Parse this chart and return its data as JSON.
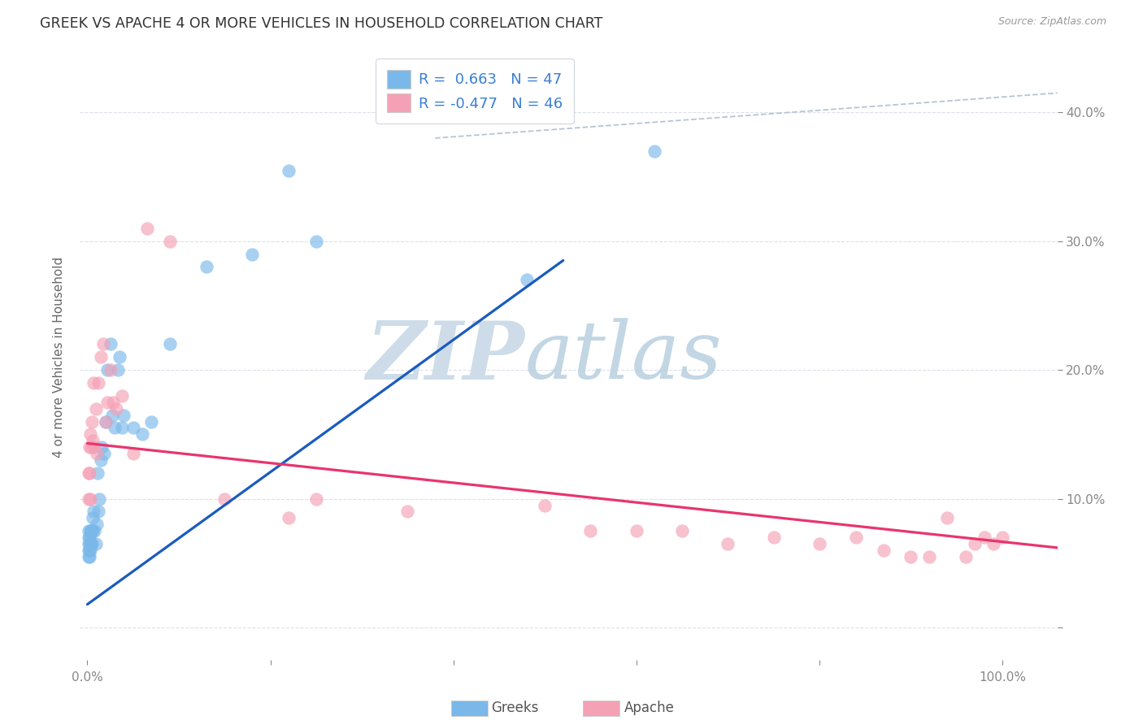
{
  "title": "GREEK VS APACHE 4 OR MORE VEHICLES IN HOUSEHOLD CORRELATION CHART",
  "source": "Source: ZipAtlas.com",
  "ylabel": "4 or more Vehicles in Household",
  "xlim": [
    -0.008,
    1.06
  ],
  "ylim": [
    -0.025,
    0.445
  ],
  "legend_entry1": "R =  0.663   N = 47",
  "legend_entry2": "R = -0.477   N = 46",
  "legend_label1": "Greeks",
  "legend_label2": "Apache",
  "greek_color": "#7ab8ea",
  "apache_color": "#f4a0b5",
  "greek_line_color": "#1a5bbf",
  "apache_line_color": "#e8356e",
  "diagonal_line_color": "#b8c4d4",
  "background_color": "#ffffff",
  "grid_color": "#dde0eb",
  "greeks_x": [
    0.001,
    0.001,
    0.001,
    0.001,
    0.001,
    0.002,
    0.002,
    0.002,
    0.002,
    0.003,
    0.003,
    0.003,
    0.004,
    0.004,
    0.005,
    0.005,
    0.006,
    0.006,
    0.007,
    0.008,
    0.009,
    0.01,
    0.011,
    0.012,
    0.013,
    0.015,
    0.016,
    0.018,
    0.02,
    0.022,
    0.025,
    0.027,
    0.03,
    0.033,
    0.035,
    0.038,
    0.04,
    0.05,
    0.06,
    0.07,
    0.09,
    0.13,
    0.18,
    0.22,
    0.25,
    0.48,
    0.62
  ],
  "greeks_y": [
    0.055,
    0.06,
    0.065,
    0.07,
    0.075,
    0.055,
    0.06,
    0.065,
    0.07,
    0.06,
    0.065,
    0.075,
    0.065,
    0.075,
    0.065,
    0.075,
    0.075,
    0.085,
    0.09,
    0.075,
    0.065,
    0.08,
    0.12,
    0.09,
    0.1,
    0.13,
    0.14,
    0.135,
    0.16,
    0.2,
    0.22,
    0.165,
    0.155,
    0.2,
    0.21,
    0.155,
    0.165,
    0.155,
    0.15,
    0.16,
    0.22,
    0.28,
    0.29,
    0.355,
    0.3,
    0.27,
    0.37
  ],
  "apache_x": [
    0.001,
    0.001,
    0.002,
    0.002,
    0.003,
    0.003,
    0.004,
    0.005,
    0.006,
    0.007,
    0.008,
    0.009,
    0.01,
    0.012,
    0.015,
    0.017,
    0.02,
    0.022,
    0.025,
    0.028,
    0.032,
    0.038,
    0.05,
    0.065,
    0.09,
    0.22,
    0.5,
    0.65,
    0.7,
    0.75,
    0.8,
    0.84,
    0.87,
    0.9,
    0.92,
    0.94,
    0.96,
    0.97,
    0.98,
    0.99,
    1.0,
    0.55,
    0.6,
    0.15,
    0.25,
    0.35
  ],
  "apache_y": [
    0.1,
    0.12,
    0.12,
    0.14,
    0.1,
    0.15,
    0.14,
    0.16,
    0.145,
    0.19,
    0.14,
    0.17,
    0.135,
    0.19,
    0.21,
    0.22,
    0.16,
    0.175,
    0.2,
    0.175,
    0.17,
    0.18,
    0.135,
    0.31,
    0.3,
    0.085,
    0.095,
    0.075,
    0.065,
    0.07,
    0.065,
    0.07,
    0.06,
    0.055,
    0.055,
    0.085,
    0.055,
    0.065,
    0.07,
    0.065,
    0.07,
    0.075,
    0.075,
    0.1,
    0.1,
    0.09
  ],
  "greek_line_x": [
    0.0,
    0.52
  ],
  "greek_line_y": [
    0.018,
    0.285
  ],
  "apache_line_x": [
    0.0,
    1.06
  ],
  "apache_line_y": [
    0.143,
    0.062
  ],
  "diag_line_x": [
    0.38,
    1.06
  ],
  "diag_line_y": [
    0.38,
    0.415
  ]
}
